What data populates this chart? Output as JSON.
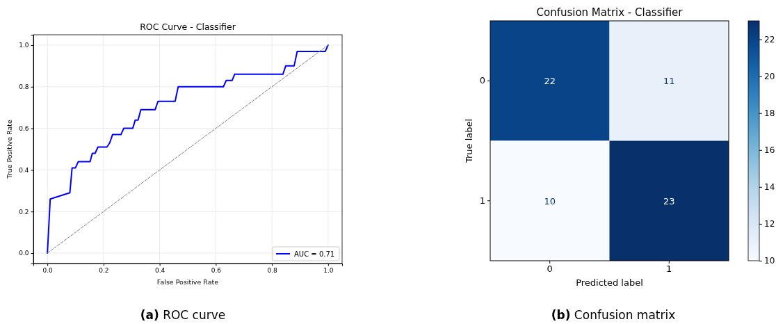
{
  "chart_data": [
    {
      "type": "line",
      "title": "ROC Curve - Classifier",
      "xlabel": "False Positive Rate",
      "ylabel": "True Positive Rate",
      "annotations": [
        "(a) ROC curve"
      ],
      "xlim": [
        -0.05,
        1.05
      ],
      "ylim": [
        -0.05,
        1.05
      ],
      "xticks": [
        {
          "value": 0,
          "label": "0.0"
        },
        {
          "value": 0.2,
          "label": "0.2"
        },
        {
          "value": 0.4,
          "label": "0.4"
        },
        {
          "value": 0.6,
          "label": "0.6"
        },
        {
          "value": 0.8,
          "label": "0.8"
        },
        {
          "value": 1,
          "label": "1.0"
        }
      ],
      "yticks": [
        {
          "value": 0,
          "label": "0.0"
        },
        {
          "value": 0.2,
          "label": "0.2"
        },
        {
          "value": 0.4,
          "label": "0.4"
        },
        {
          "value": 0.6,
          "label": "0.6"
        },
        {
          "value": 0.8,
          "label": "0.8"
        },
        {
          "value": 1,
          "label": "1.0"
        }
      ],
      "grid": true,
      "legend": "bottom right",
      "series": [
        {
          "name": "AUC = 0.71",
          "color": "#0000ff",
          "x": [
            0,
            0.01,
            0.08,
            0.088,
            0.1,
            0.11,
            0.152,
            0.16,
            0.17,
            0.18,
            0.212,
            0.222,
            0.232,
            0.262,
            0.272,
            0.304,
            0.313,
            0.323,
            0.333,
            0.384,
            0.394,
            0.455,
            0.466,
            0.627,
            0.637,
            0.658,
            0.667,
            0.839,
            0.849,
            0.879,
            0.89,
            0.99,
            1
          ],
          "values": [
            0,
            0.26,
            0.29,
            0.41,
            0.41,
            0.44,
            0.44,
            0.48,
            0.48,
            0.51,
            0.51,
            0.53,
            0.57,
            0.57,
            0.6,
            0.6,
            0.64,
            0.64,
            0.69,
            0.69,
            0.73,
            0.73,
            0.8,
            0.8,
            0.83,
            0.83,
            0.86,
            0.86,
            0.9,
            0.9,
            0.97,
            0.97,
            1
          ]
        },
        {
          "color": "#808080",
          "line_style": "dashed",
          "x": [
            0,
            1
          ],
          "values": [
            0,
            1
          ]
        }
      ]
    },
    {
      "type": "heatmap",
      "title": "Confusion Matrix - Classifier",
      "xlabel": "Predicted label",
      "ylabel": "True label",
      "annotations": [
        "(b) Confusion matrix"
      ],
      "categories": [
        "0",
        "1"
      ],
      "y_categories": [
        "0",
        "1"
      ],
      "cells": [
        [
          22,
          11
        ],
        [
          10,
          23
        ]
      ],
      "clim": [
        10,
        23
      ],
      "cticks": [
        10,
        12,
        14,
        16,
        18,
        20,
        22
      ],
      "data_labels": true
    }
  ]
}
